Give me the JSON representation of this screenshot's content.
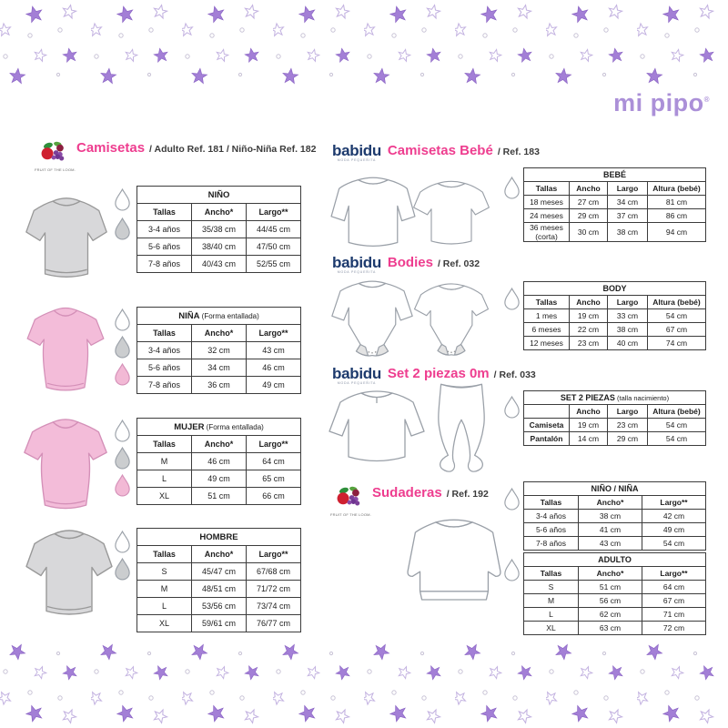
{
  "brand": {
    "logo_text": "mi pipo",
    "registered_mark": "®"
  },
  "babidu_tagline": "MODA PEQUEÑITA",
  "fruit_logo_text": "FRUIT OF THE LOOM.",
  "colors": {
    "accent_pink": "#ee3d8f",
    "brand_purple": "#ab90d8",
    "babidu_navy": "#1d3a6d",
    "star_purple": "#a37fd6",
    "shirt_gray": "#d8d8da",
    "shirt_pink": "#f3bcd9",
    "droplet_gray": "#cbcdcf",
    "droplet_pink": "#f2b9d5"
  },
  "sections": {
    "camisetas": {
      "title": "Camisetas",
      "subtitle": "/ Adulto Ref. 181 / Niño-Niña Ref. 182"
    },
    "camisetas_bebe": {
      "brand": "babidu",
      "title": "Camisetas Bebé",
      "subtitle": "/ Ref. 183"
    },
    "bodies": {
      "brand": "babidu",
      "title": "Bodies",
      "subtitle": "/ Ref. 032"
    },
    "set_2_piezas": {
      "brand": "babidu",
      "title": "Set 2 piezas 0m",
      "subtitle": "/ Ref. 033"
    },
    "sudaderas": {
      "title": "Sudaderas",
      "subtitle": "/ Ref. 192"
    }
  },
  "tables": {
    "nino": {
      "title": "NIÑO",
      "note": "",
      "headers": [
        "Tallas",
        "Ancho*",
        "Largo**"
      ],
      "rows": [
        [
          "3-4 años",
          "35/38 cm",
          "44/45 cm"
        ],
        [
          "5-6 años",
          "38/40 cm",
          "47/50 cm"
        ],
        [
          "7-8 años",
          "40/43 cm",
          "52/55 cm"
        ]
      ]
    },
    "nina": {
      "title": "NIÑA",
      "note": "(Forma entallada)",
      "headers": [
        "Tallas",
        "Ancho*",
        "Largo**"
      ],
      "rows": [
        [
          "3-4 años",
          "32 cm",
          "43 cm"
        ],
        [
          "5-6 años",
          "34 cm",
          "46 cm"
        ],
        [
          "7-8 años",
          "36 cm",
          "49 cm"
        ]
      ]
    },
    "mujer": {
      "title": "MUJER",
      "note": "(Forma entallada)",
      "headers": [
        "Tallas",
        "Ancho*",
        "Largo**"
      ],
      "rows": [
        [
          "M",
          "46 cm",
          "64 cm"
        ],
        [
          "L",
          "49 cm",
          "65 cm"
        ],
        [
          "XL",
          "51 cm",
          "66 cm"
        ]
      ]
    },
    "hombre": {
      "title": "HOMBRE",
      "note": "",
      "headers": [
        "Tallas",
        "Ancho*",
        "Largo**"
      ],
      "rows": [
        [
          "S",
          "45/47 cm",
          "67/68 cm"
        ],
        [
          "M",
          "48/51 cm",
          "71/72 cm"
        ],
        [
          "L",
          "53/56 cm",
          "73/74 cm"
        ],
        [
          "XL",
          "59/61 cm",
          "76/77 cm"
        ]
      ]
    },
    "bebe": {
      "title": "BEBÉ",
      "note": "",
      "headers": [
        "Tallas",
        "Ancho",
        "Largo",
        "Altura (bebé)"
      ],
      "widths": [
        25,
        21,
        22,
        32
      ],
      "rows": [
        [
          "18 meses",
          "27 cm",
          "34 cm",
          "81 cm"
        ],
        [
          "24 meses",
          "29 cm",
          "37 cm",
          "86 cm"
        ],
        [
          "36 meses (corta)",
          "30 cm",
          "38 cm",
          "94 cm"
        ]
      ]
    },
    "body": {
      "title": "BODY",
      "note": "",
      "headers": [
        "Tallas",
        "Ancho",
        "Largo",
        "Altura (bebé)"
      ],
      "widths": [
        25,
        21,
        22,
        32
      ],
      "rows": [
        [
          "1 mes",
          "19 cm",
          "33 cm",
          "54 cm"
        ],
        [
          "6 meses",
          "22 cm",
          "38 cm",
          "67 cm"
        ],
        [
          "12 meses",
          "23 cm",
          "40 cm",
          "74 cm"
        ]
      ]
    },
    "set2piezas": {
      "title": "SET 2 PIEZAS",
      "note": "(talla nacimiento)",
      "headers": [
        "",
        "Ancho",
        "Largo",
        "Altura (bebé)"
      ],
      "widths": [
        25,
        21,
        22,
        32
      ],
      "bold_first_col": true,
      "rows": [
        [
          "Camiseta",
          "19 cm",
          "23 cm",
          "54 cm"
        ],
        [
          "Pantalón",
          "14 cm",
          "29 cm",
          "54 cm"
        ]
      ]
    },
    "nino_nina": {
      "title": "NIÑO / NIÑA",
      "note": "",
      "headers": [
        "Tallas",
        "Ancho*",
        "Largo**"
      ],
      "widths": [
        30,
        35,
        35
      ],
      "rows": [
        [
          "3-4 años",
          "38 cm",
          "42 cm"
        ],
        [
          "5-6 años",
          "41 cm",
          "49 cm"
        ],
        [
          "7-8 años",
          "43 cm",
          "54 cm"
        ]
      ]
    },
    "adulto": {
      "title": "ADULTO",
      "note": "",
      "headers": [
        "Tallas",
        "Ancho*",
        "Largo**"
      ],
      "widths": [
        30,
        35,
        35
      ],
      "rows": [
        [
          "S",
          "51 cm",
          "64 cm"
        ],
        [
          "M",
          "56 cm",
          "67 cm"
        ],
        [
          "L",
          "62 cm",
          "71 cm"
        ],
        [
          "XL",
          "63 cm",
          "72 cm"
        ]
      ]
    }
  }
}
